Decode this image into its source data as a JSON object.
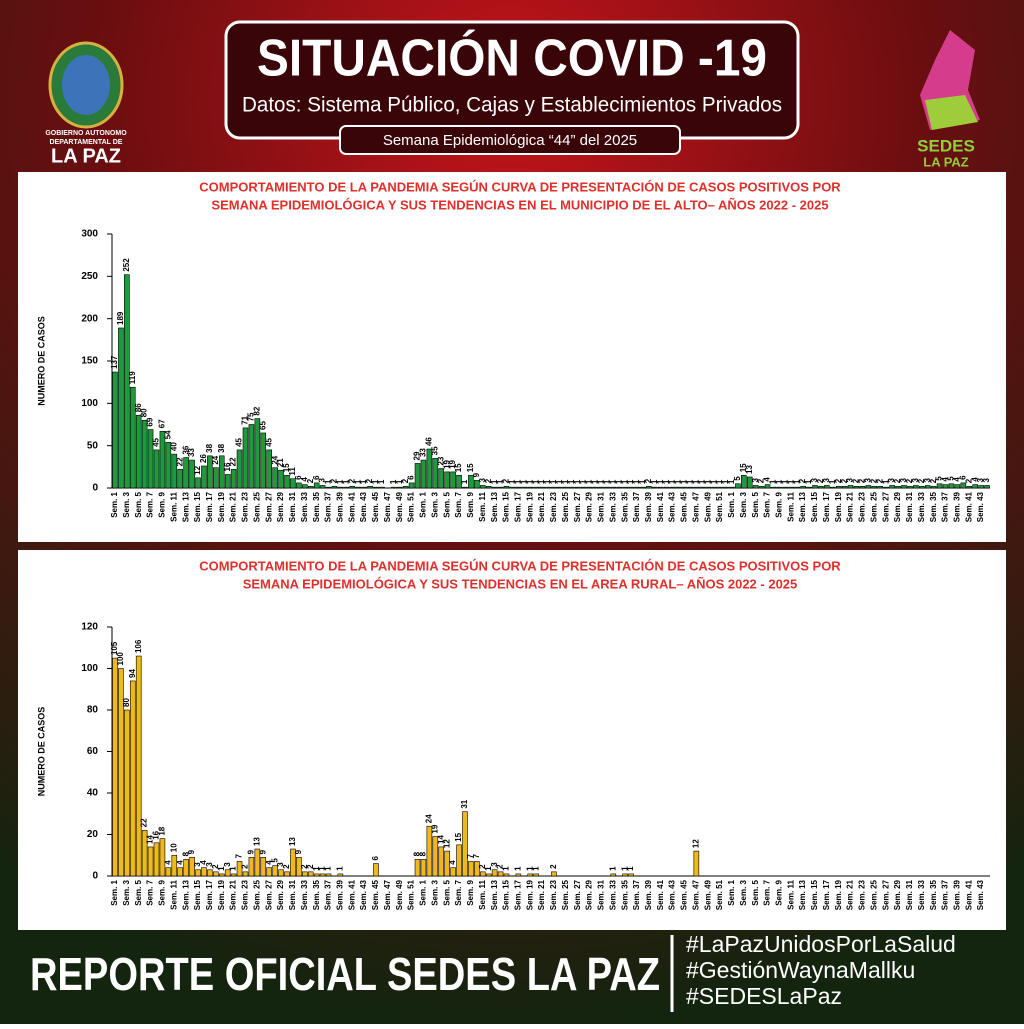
{
  "header": {
    "title": "SITUACIÓN COVID -19",
    "subtitle": "Datos: Sistema Público, Cajas y Establecimientos Privados",
    "week": "Semana  Epidemiológica “44” del  2025",
    "left_logo": [
      "GOBIERNO AUTONOMO",
      "DEPARTAMENTAL DE",
      "LA PAZ"
    ],
    "right_logo": [
      "SEDES",
      "LA PAZ"
    ]
  },
  "chart_data": [
    {
      "type": "bar",
      "title": [
        "COMPORTAMIENTO DE LA PANDEMIA SEGÚN CURVA DE PRESENTACIÓN DE CASOS POSITIVOS POR",
        "SEMANA EPIDEMIOLÓGICA Y SUS TENDENCIAS EN EL MUNICIPIO DE EL ALTO– AÑOS 2022 - 2025"
      ],
      "y_label": "NUMERO DE CASOS",
      "color": "#1e9a3c",
      "categories": [
        "Sem. 1",
        null,
        "Sem. 3",
        null,
        "Sem. 5",
        null,
        "Sem. 7",
        null,
        "Sem. 9",
        null,
        "Sem. 11",
        null,
        "Sem. 13",
        null,
        "Sem. 15",
        null,
        "Sem. 17",
        null,
        "Sem. 19",
        null,
        "Sem. 21",
        null,
        "Sem. 23",
        null,
        "Sem. 25",
        null,
        "Sem. 27",
        null,
        "Sem. 29",
        null,
        "Sem. 31",
        null,
        "Sem. 33",
        null,
        "Sem. 35",
        null,
        "Sem. 37",
        null,
        "Sem. 39",
        null,
        "Sem. 41",
        null,
        "Sem. 43",
        null,
        "Sem. 45",
        null,
        "Sem. 47",
        null,
        "Sem. 49",
        null,
        "Sem. 51",
        null,
        "Sem. 1",
        null,
        "Sem. 3",
        null,
        "Sem. 5",
        null,
        "Sem. 7",
        null,
        "Sem. 9",
        null,
        "Sem. 11",
        null,
        "Sem. 13",
        null,
        "Sem. 15",
        null,
        "Sem. 17",
        null,
        "Sem. 19",
        null,
        "Sem. 21",
        null,
        "Sem. 23",
        null,
        "Sem. 25",
        null,
        "Sem. 27",
        null,
        "Sem. 29",
        null,
        "Sem. 31",
        null,
        "Sem. 33",
        null,
        "Sem. 35",
        null,
        "Sem. 37",
        null,
        "Sem. 39",
        null,
        "Sem. 41",
        null,
        "Sem. 43",
        null,
        "Sem. 45",
        null,
        "Sem. 47",
        null,
        "Sem. 49",
        null,
        "Sem. 51",
        null,
        "Sem. 1",
        null,
        "Sem. 3",
        null,
        "Sem. 5",
        null,
        "Sem. 7",
        null,
        "Sem. 9",
        null,
        "Sem. 11",
        null,
        "Sem. 13",
        null,
        "Sem. 15",
        null,
        "Sem. 17",
        null,
        "Sem. 19",
        null,
        "Sem. 21",
        null,
        "Sem. 23",
        null,
        "Sem. 25",
        null,
        "Sem. 27",
        null,
        "Sem. 29",
        null,
        "Sem. 31",
        null,
        "Sem. 33",
        null,
        "Sem. 35",
        null,
        "Sem. 37",
        null,
        "Sem. 39",
        null,
        "Sem. 41",
        null,
        "Sem. 43",
        null
      ],
      "values": [
        137,
        189,
        252,
        119,
        86,
        80,
        69,
        45,
        67,
        54,
        40,
        22,
        36,
        33,
        12,
        26,
        38,
        24,
        38,
        16,
        22,
        45,
        71,
        75,
        82,
        65,
        45,
        24,
        21,
        15,
        11,
        6,
        4,
        2,
        6,
        3,
        1,
        2,
        1,
        1,
        2,
        1,
        1,
        2,
        1,
        1,
        0,
        1,
        1,
        2,
        6,
        29,
        33,
        46,
        35,
        23,
        19,
        19,
        15,
        1,
        15,
        9,
        3,
        2,
        1,
        1,
        2,
        1,
        1,
        1,
        1,
        1,
        1,
        1,
        1,
        1,
        1,
        1,
        1,
        1,
        1,
        1,
        1,
        1,
        1,
        1,
        1,
        1,
        1,
        1,
        2,
        1,
        1,
        1,
        1,
        1,
        1,
        1,
        1,
        1,
        1,
        1,
        1,
        1,
        1,
        5,
        15,
        13,
        3,
        2,
        4,
        1,
        1,
        1,
        1,
        1,
        2,
        1,
        3,
        2,
        3,
        1,
        2,
        2,
        3,
        2,
        2,
        3,
        2,
        2,
        1,
        3,
        2,
        3,
        2,
        3,
        2,
        3,
        2,
        5,
        4,
        5,
        4,
        6,
        2,
        4,
        3,
        3
      ],
      "ylim": [
        0,
        300
      ],
      "yticks": [
        0,
        50,
        100,
        150,
        200,
        250,
        300
      ]
    },
    {
      "type": "bar",
      "title": [
        "COMPORTAMIENTO DE LA PANDEMIA SEGÚN CURVA DE PRESENTACIÓN DE CASOS POSITIVOS POR",
        "SEMANA EPIDEMIOLÓGICA Y SUS TENDENCIAS EN EL AREA RURAL– AÑOS 2022 - 2025"
      ],
      "y_label": "NUMERO DE CASOS",
      "color": "#f0b81e",
      "categories": [
        "Sem. 1",
        null,
        "Sem. 3",
        null,
        "Sem. 5",
        null,
        "Sem. 7",
        null,
        "Sem. 9",
        null,
        "Sem. 11",
        null,
        "Sem. 13",
        null,
        "Sem. 15",
        null,
        "Sem. 17",
        null,
        "Sem. 19",
        null,
        "Sem. 21",
        null,
        "Sem. 23",
        null,
        "Sem. 25",
        null,
        "Sem. 27",
        null,
        "Sem. 29",
        null,
        "Sem. 31",
        null,
        "Sem. 33",
        null,
        "Sem. 35",
        null,
        "Sem. 37",
        null,
        "Sem. 39",
        null,
        "Sem. 41",
        null,
        "Sem. 43",
        null,
        "Sem. 45",
        null,
        "Sem. 47",
        null,
        "Sem. 49",
        null,
        "Sem. 51",
        null,
        "Sem. 1",
        null,
        "Sem. 3",
        null,
        "Sem. 5",
        null,
        "Sem. 7",
        null,
        "Sem. 9",
        null,
        "Sem. 11",
        null,
        "Sem. 13",
        null,
        "Sem. 15",
        null,
        "Sem. 17",
        null,
        "Sem. 19",
        null,
        "Sem. 21",
        null,
        "Sem. 23",
        null,
        "Sem. 25",
        null,
        "Sem. 27",
        null,
        "Sem. 29",
        null,
        "Sem. 31",
        null,
        "Sem. 33",
        null,
        "Sem. 35",
        null,
        "Sem. 37",
        null,
        "Sem. 39",
        null,
        "Sem. 41",
        null,
        "Sem. 43",
        null,
        "Sem. 45",
        null,
        "Sem. 47",
        null,
        "Sem. 49",
        null,
        "Sem. 51",
        null,
        "Sem. 1",
        null,
        "Sem. 3",
        null,
        "Sem. 5",
        null,
        "Sem. 7",
        null,
        "Sem. 9",
        null,
        "Sem. 11",
        null,
        "Sem. 13",
        null,
        "Sem. 15",
        null,
        "Sem. 17",
        null,
        "Sem. 19",
        null,
        "Sem. 21",
        null,
        "Sem. 23",
        null,
        "Sem. 25",
        null,
        "Sem. 27",
        null,
        "Sem. 29",
        null,
        "Sem. 31",
        null,
        "Sem. 33",
        null,
        "Sem. 35",
        null,
        "Sem. 37",
        null,
        "Sem. 39",
        null,
        "Sem. 41",
        null,
        "Sem. 43",
        null
      ],
      "values": [
        105,
        100,
        80,
        94,
        106,
        22,
        14,
        16,
        18,
        4,
        10,
        4,
        8,
        9,
        3,
        4,
        3,
        2,
        1,
        3,
        1,
        7,
        2,
        9,
        13,
        9,
        4,
        5,
        3,
        2,
        13,
        9,
        2,
        2,
        1,
        1,
        1,
        0,
        1,
        0,
        0,
        0,
        0,
        0,
        6,
        0,
        0,
        0,
        0,
        0,
        0,
        8,
        8,
        24,
        19,
        14,
        12,
        4,
        15,
        31,
        7,
        7,
        2,
        1,
        3,
        2,
        1,
        0,
        1,
        0,
        1,
        1,
        0,
        0,
        2,
        0,
        0,
        0,
        0,
        0,
        0,
        0,
        0,
        0,
        1,
        0,
        1,
        1,
        0,
        0,
        0,
        0,
        0,
        0,
        0,
        0,
        0,
        0,
        12,
        0,
        0,
        0,
        0,
        0,
        0,
        0,
        0,
        0,
        0,
        0,
        0,
        0,
        0,
        0,
        0,
        0,
        0,
        0,
        0,
        0,
        0,
        0,
        0,
        0,
        0,
        0,
        0,
        0,
        0,
        0,
        0,
        0,
        0,
        0,
        0,
        0,
        0,
        0,
        0,
        0,
        0,
        0,
        0,
        0,
        0,
        0,
        0,
        0
      ],
      "ylim": [
        0,
        120
      ],
      "yticks": [
        0,
        20,
        40,
        60,
        80,
        100,
        120
      ]
    }
  ],
  "footer": {
    "title": "REPORTE OFICIAL SEDES LA PAZ",
    "hashtags": [
      "#LaPazUnidosPorLaSalud",
      "#GestiónWaynaMallku",
      "#SEDESLaPaz"
    ]
  }
}
